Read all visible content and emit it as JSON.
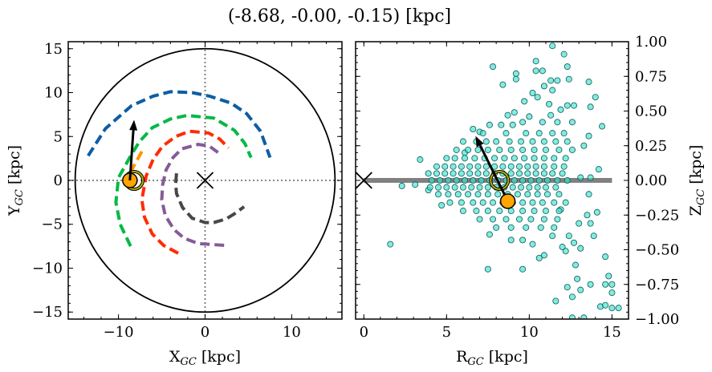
{
  "title": "(-8.68, -0.00, -0.15) [kpc]",
  "colors": {
    "arm_blue": "#0C5DA5",
    "arm_green": "#00B945",
    "arm_red": "#FF2C00",
    "arm_orange": "#FF9500",
    "arm_purple": "#845B97",
    "arm_gray": "#474747",
    "sun": "#FFA500",
    "ring": "#B5B000",
    "scatter_fill": "#40E0D0",
    "scatter_edge": "#0A5A55",
    "plane_line": "#808080"
  },
  "chart_data": [
    {
      "type": "line",
      "panel": "left",
      "xlabel": {
        "main": "X",
        "sub": "GC",
        "unit": " [kpc]"
      },
      "ylabel": {
        "main": "Y",
        "sub": "GC",
        "unit": " [kpc]"
      },
      "xlim": [
        -15.8,
        15.8
      ],
      "ylim": [
        -15.8,
        15.8
      ],
      "xticks": [
        -10,
        0,
        10
      ],
      "xtick_labels": [
        "−10",
        "0",
        "10"
      ],
      "yticks": [
        15,
        10,
        5,
        0,
        -5,
        -10,
        -15
      ],
      "ytick_labels": [
        "15",
        "10",
        "5",
        "0",
        "−5",
        "−10",
        "−15"
      ],
      "boundary_circle_radius": 15,
      "reference_lines": {
        "x": 0,
        "y": 0,
        "style": "dotted"
      },
      "galactic_center_marker": {
        "x": 0,
        "y": 0,
        "marker": "x"
      },
      "series": [
        {
          "color": "arm_blue",
          "style": "dashed",
          "points": [
            [
              -13.5,
              2.8
            ],
            [
              -11.5,
              5.9
            ],
            [
              -8.5,
              8.5
            ],
            [
              -6,
              9.6
            ],
            [
              -4,
              10.1
            ],
            [
              -1.5,
              10
            ],
            [
              0.5,
              9.6
            ],
            [
              3,
              8.8
            ],
            [
              4.8,
              7.6
            ],
            [
              6.4,
              5.6
            ],
            [
              7.5,
              2.6
            ]
          ]
        },
        {
          "color": "arm_green",
          "style": "dashed",
          "points": [
            [
              -8.6,
              -7.5
            ],
            [
              -9.8,
              -5
            ],
            [
              -10.3,
              -2.5
            ],
            [
              -10,
              0.3
            ],
            [
              -8.7,
              2.6
            ],
            [
              -7.6,
              4.4
            ],
            [
              -6.1,
              6.0
            ],
            [
              -4,
              7
            ],
            [
              -2.1,
              7.4
            ],
            [
              1,
              7.1
            ],
            [
              3.4,
              5.7
            ],
            [
              4.6,
              4.2
            ],
            [
              5.3,
              2.6
            ]
          ]
        },
        {
          "color": "arm_red",
          "style": "dashed",
          "points": [
            [
              -3.1,
              -8.3
            ],
            [
              -4.8,
              -7.4
            ],
            [
              -6.1,
              -6.1
            ],
            [
              -7,
              -4.2
            ],
            [
              -7.3,
              -2.2
            ],
            [
              -6.8,
              0.5
            ],
            [
              -6,
              2.4
            ],
            [
              -4.9,
              3.9
            ],
            [
              -3.4,
              5
            ],
            [
              -1.8,
              5.6
            ],
            [
              0.4,
              5.4
            ],
            [
              1.7,
              4.7
            ],
            [
              2.7,
              3.7
            ]
          ]
        },
        {
          "color": "arm_purple",
          "style": "dashed",
          "points": [
            [
              2.2,
              -7.4
            ],
            [
              -0.8,
              -7.2
            ],
            [
              -2.4,
              -6.6
            ],
            [
              -3.6,
              -5.6
            ],
            [
              -4.6,
              -4
            ],
            [
              -5,
              -2.2
            ],
            [
              -4.9,
              -0.5
            ],
            [
              -4.5,
              1.2
            ],
            [
              -3.7,
              2.6
            ],
            [
              -2.7,
              3.6
            ],
            [
              -0.8,
              4.1
            ],
            [
              0.5,
              3.9
            ],
            [
              1.6,
              3.1
            ]
          ]
        },
        {
          "color": "arm_gray",
          "style": "dashed",
          "points": [
            [
              -3.3,
              0.8
            ],
            [
              -3.4,
              -0.4
            ],
            [
              -3.3,
              -1.5
            ],
            [
              -2.6,
              -3.1
            ],
            [
              -1.5,
              -4.3
            ],
            [
              0,
              -4.8
            ],
            [
              1,
              -4.8
            ],
            [
              2.4,
              -4.4
            ],
            [
              3.4,
              -3.8
            ],
            [
              4.5,
              -3
            ]
          ]
        },
        {
          "color": "arm_orange",
          "style": "dashed",
          "points": [
            [
              -7.3,
              3.3
            ],
            [
              -8.3,
              1.5
            ],
            [
              -9,
              0
            ],
            [
              -9.4,
              -1.1
            ]
          ]
        }
      ],
      "sun": {
        "x": -8.68,
        "y": 0.0
      },
      "ring": {
        "x": -8.2,
        "y": 0.0
      },
      "velocity_arrow": {
        "from": [
          -8.68,
          0.0
        ],
        "to": [
          -8.2,
          6.9
        ]
      }
    },
    {
      "type": "scatter",
      "panel": "right",
      "xlabel": {
        "main": "R",
        "sub": "GC",
        "unit": " [kpc]"
      },
      "ylabel": {
        "main": "Z",
        "sub": "GC",
        "unit": " [kpc]"
      },
      "xlim": [
        -0.5,
        16.0
      ],
      "ylim": [
        -1.0,
        1.0
      ],
      "xticks": [
        0,
        5,
        10,
        15
      ],
      "xtick_labels": [
        "0",
        "5",
        "10",
        "15"
      ],
      "yticks": [
        1.0,
        0.75,
        0.5,
        0.25,
        0.0,
        -0.25,
        -0.5,
        -0.75,
        -1.0
      ],
      "ytick_labels": [
        "1.00",
        "0.75",
        "0.50",
        "0.25",
        "0.00",
        "−0.25",
        "−0.50",
        "−0.75",
        "−1.00"
      ],
      "galactic_plane_line": {
        "z": 0,
        "r_range": [
          0,
          15
        ]
      },
      "galactic_center_marker": {
        "x": 0,
        "y": 0,
        "marker": "x"
      },
      "sun": {
        "x": 8.7,
        "y": -0.15
      },
      "ring": {
        "x": 8.2,
        "y": 0.0
      },
      "velocity_arrow": {
        "from": [
          8.7,
          -0.15
        ],
        "to": [
          6.75,
          0.32
        ]
      },
      "scatter_core_rows": [
        {
          "z": 0.42,
          "r": [
            9.6,
            10.8,
            11.7,
            12.6
          ]
        },
        {
          "z": 0.34,
          "r": [
            7.2,
            8.6,
            9.8,
            10.6,
            11.4,
            12.1
          ]
        },
        {
          "z": 0.28,
          "r": [
            6.0,
            6.8,
            7.4,
            8.0,
            8.8,
            9.5,
            10.2,
            10.9,
            11.6,
            12.3
          ]
        },
        {
          "z": 0.22,
          "r": [
            5.6,
            6.3,
            6.9,
            7.5,
            8.2,
            8.9,
            9.6,
            10.3,
            11.0,
            11.8,
            12.6
          ]
        },
        {
          "z": 0.16,
          "r": [
            5.0,
            5.5,
            6.1,
            6.7,
            7.3,
            7.9,
            8.5,
            9.1,
            9.7,
            10.3,
            10.9,
            11.5,
            12.2
          ]
        },
        {
          "z": 0.1,
          "r": [
            4.4,
            4.9,
            5.4,
            5.9,
            6.4,
            6.9,
            7.4,
            7.9,
            8.4,
            8.9,
            9.4,
            9.9,
            10.4,
            10.9,
            11.5,
            12.1
          ]
        },
        {
          "z": 0.05,
          "r": [
            3.9,
            4.4,
            4.9,
            5.4,
            5.9,
            6.4,
            6.9,
            7.4,
            7.9,
            8.4,
            8.9,
            9.4,
            9.9,
            10.4,
            10.9,
            11.4,
            12.0
          ]
        },
        {
          "z": 0.0,
          "r": [
            4.1,
            4.6,
            5.1,
            5.6,
            6.1,
            6.6,
            7.1,
            7.6,
            8.1,
            8.6,
            9.1,
            9.6,
            10.1,
            10.6,
            11.1,
            11.7,
            12.3
          ]
        },
        {
          "z": -0.05,
          "r": [
            4.0,
            4.5,
            5.0,
            5.5,
            6.0,
            6.5,
            7.0,
            7.5,
            8.0,
            8.5,
            9.0,
            9.5,
            10.0,
            10.5,
            11.0,
            11.6
          ]
        },
        {
          "z": -0.1,
          "r": [
            4.5,
            5.1,
            5.7,
            6.3,
            6.9,
            7.5,
            8.1,
            8.7,
            9.3,
            9.9,
            10.5,
            11.1,
            11.8
          ]
        },
        {
          "z": -0.16,
          "r": [
            5.2,
            5.9,
            6.6,
            7.2,
            7.8,
            8.4,
            9.0,
            9.6,
            10.2,
            10.8,
            11.5,
            12.2
          ]
        },
        {
          "z": -0.22,
          "r": [
            6.0,
            6.8,
            7.5,
            8.2,
            8.9,
            9.6,
            10.3,
            11.0,
            11.8
          ]
        },
        {
          "z": -0.28,
          "r": [
            7.0,
            7.8,
            8.6,
            9.4,
            10.1,
            10.9,
            11.7
          ]
        },
        {
          "z": -0.34,
          "r": [
            8.0,
            8.9,
            9.8,
            10.7,
            11.5
          ]
        }
      ],
      "scatter_points": [
        [
          11.4,
          0.97
        ],
        [
          12.1,
          0.91
        ],
        [
          10.4,
          0.86
        ],
        [
          12.3,
          0.82
        ],
        [
          7.8,
          0.82
        ],
        [
          9.2,
          0.77
        ],
        [
          10.4,
          0.79
        ],
        [
          10.8,
          0.79
        ],
        [
          9.2,
          0.73
        ],
        [
          11.3,
          0.72
        ],
        [
          11.7,
          0.72
        ],
        [
          12.4,
          0.73
        ],
        [
          8.4,
          0.69
        ],
        [
          13.6,
          0.71
        ],
        [
          10.9,
          0.68
        ],
        [
          11.4,
          0.65
        ],
        [
          10.2,
          0.63
        ],
        [
          14.0,
          0.6
        ],
        [
          10.5,
          0.6
        ],
        [
          9.7,
          0.57
        ],
        [
          11.2,
          0.55
        ],
        [
          12.3,
          0.54
        ],
        [
          12.7,
          0.54
        ],
        [
          13.7,
          0.53
        ],
        [
          11.9,
          0.51
        ],
        [
          9.1,
          0.49
        ],
        [
          8.7,
          0.47
        ],
        [
          10.0,
          0.46
        ],
        [
          11.3,
          0.47
        ],
        [
          14.4,
          0.39
        ],
        [
          6.6,
          0.37
        ],
        [
          7.0,
          0.35
        ],
        [
          7.6,
          0.4
        ],
        [
          8.3,
          0.4
        ],
        [
          9.0,
          0.4
        ],
        [
          3.4,
          0.15
        ],
        [
          6.1,
          0.2
        ],
        [
          14.2,
          0.08
        ],
        [
          13.7,
          0.02
        ],
        [
          13.1,
          0.02
        ],
        [
          13.6,
          0.32
        ],
        [
          13.3,
          0.25
        ],
        [
          2.3,
          -0.04
        ],
        [
          3.1,
          -0.03
        ],
        [
          3.9,
          -0.07
        ],
        [
          4.7,
          -0.18
        ],
        [
          1.6,
          -0.46
        ],
        [
          7.5,
          -0.64
        ],
        [
          9.6,
          -0.64
        ],
        [
          14.6,
          -0.55
        ],
        [
          14.8,
          -0.69
        ],
        [
          15.0,
          -0.75
        ],
        [
          14.6,
          -0.75
        ],
        [
          13.7,
          -0.75
        ],
        [
          15.0,
          -0.81
        ],
        [
          14.3,
          -0.91
        ],
        [
          14.6,
          -0.9
        ],
        [
          15.0,
          -0.92
        ],
        [
          15.4,
          -0.92
        ],
        [
          12.9,
          -0.71
        ],
        [
          12.3,
          -0.77
        ],
        [
          13.1,
          -0.79
        ],
        [
          12.6,
          -0.84
        ],
        [
          11.6,
          -0.87
        ],
        [
          13.3,
          -0.99
        ],
        [
          12.6,
          -0.99
        ],
        [
          12.8,
          -0.61
        ],
        [
          12.2,
          -0.51
        ],
        [
          13.1,
          -0.49
        ],
        [
          10.9,
          -0.54
        ],
        [
          10.6,
          -0.56
        ],
        [
          12.0,
          -0.48
        ],
        [
          13.9,
          -0.4
        ],
        [
          13.5,
          -0.25
        ],
        [
          14.1,
          -0.23
        ],
        [
          12.4,
          -0.4
        ],
        [
          12.7,
          -0.45
        ],
        [
          11.4,
          -0.4
        ],
        [
          8.9,
          -0.43
        ],
        [
          7.6,
          -0.39
        ],
        [
          10.2,
          -0.46
        ],
        [
          9.6,
          -0.43
        ],
        [
          13.7,
          -0.31
        ],
        [
          13.0,
          -0.31
        ],
        [
          11.9,
          -0.21
        ],
        [
          13.6,
          -0.1
        ]
      ]
    }
  ]
}
